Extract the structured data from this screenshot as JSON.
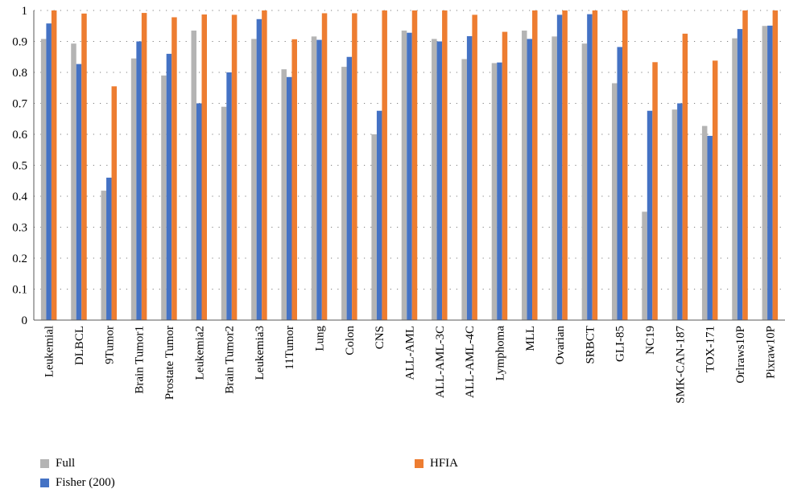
{
  "chart_data": {
    "type": "bar",
    "title": "",
    "xlabel": "",
    "ylabel": "",
    "ylim": [
      0,
      1
    ],
    "yticks": [
      "0",
      "0.1",
      "0.2",
      "0.3",
      "0.4",
      "0.5",
      "0.6",
      "0.7",
      "0.8",
      "0.9",
      "1"
    ],
    "grid": "horizontal dotted",
    "legend_position": "bottom",
    "categories": [
      "Leukemial",
      "DLBCL",
      "9Tumor",
      "Brain Tumor1",
      "Prostate Tumor",
      "Leukemia2",
      "Brain Tumor2",
      "Leukemia3",
      "11Tumor",
      "Lung",
      "Colon",
      "CNS",
      "ALL-AML",
      "ALL-AML-3C",
      "ALL-AML-4C",
      "Lymphoma",
      "MLL",
      "Ovarian",
      "SRBCT",
      "GLI-85",
      "NC19",
      "SMK-CAN-187",
      "TOX-171",
      "Orlraws10P",
      "Pixraw10P"
    ],
    "series": [
      {
        "name": "Full",
        "color": "#b4b4b4",
        "values": [
          0.908,
          0.893,
          0.418,
          0.845,
          0.79,
          0.935,
          0.689,
          0.908,
          0.81,
          0.916,
          0.818,
          0.6,
          0.935,
          0.908,
          0.843,
          0.83,
          0.935,
          0.916,
          0.893,
          0.765,
          0.35,
          0.68,
          0.627,
          0.91,
          0.95
        ]
      },
      {
        "name": "Fisher (200)",
        "color": "#4472c4",
        "values": [
          0.958,
          0.827,
          0.46,
          0.9,
          0.86,
          0.7,
          0.8,
          0.972,
          0.785,
          0.905,
          0.85,
          0.676,
          0.928,
          0.9,
          0.917,
          0.832,
          0.908,
          0.986,
          0.988,
          0.882,
          0.676,
          0.7,
          0.595,
          0.94,
          0.951
        ]
      },
      {
        "name": "HFIA",
        "color": "#ed7d31",
        "values": [
          1.0,
          0.99,
          0.755,
          0.992,
          0.978,
          0.987,
          0.986,
          1.0,
          0.907,
          0.991,
          0.991,
          1.0,
          1.0,
          1.0,
          0.986,
          0.931,
          1.0,
          1.0,
          1.0,
          1.0,
          0.833,
          0.925,
          0.838,
          1.0,
          1.0
        ]
      }
    ]
  }
}
